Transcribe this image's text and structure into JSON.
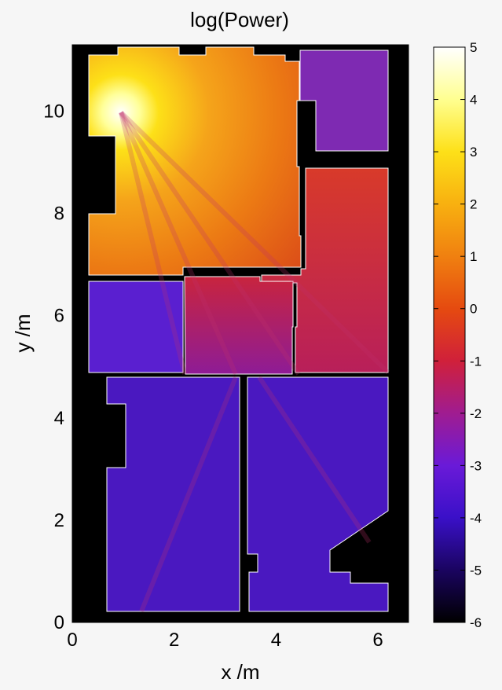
{
  "chart_data": {
    "type": "heatmap",
    "title": "log(Power)",
    "xlabel": "x /m",
    "ylabel": "y /m",
    "xlim": [
      0,
      6.6
    ],
    "ylim": [
      0,
      11.3
    ],
    "x_ticks": [
      "0",
      "2",
      "4",
      "6"
    ],
    "x_tick_values": [
      0,
      2,
      4,
      6
    ],
    "y_ticks": [
      "0",
      "2",
      "4",
      "6",
      "8",
      "10"
    ],
    "y_tick_values": [
      0,
      2,
      4,
      6,
      8,
      10
    ],
    "colorbar": {
      "range": [
        -6,
        5
      ],
      "ticks": [
        "5",
        "4",
        "3",
        "2",
        "1",
        "0",
        "-1",
        "-2",
        "-3",
        "-4",
        "-5",
        "-6"
      ],
      "tick_values": [
        5,
        4,
        3,
        2,
        1,
        0,
        -1,
        -2,
        -3,
        -4,
        -5,
        -6
      ],
      "colormap": [
        "#000000",
        "#1a0460",
        "#3a10c8",
        "#6a1ad8",
        "#a01c90",
        "#d0203a",
        "#e54a10",
        "#f08010",
        "#f8b010",
        "#fde018",
        "#ffff90",
        "#ffffff"
      ]
    },
    "source": {
      "x": 0.9,
      "y": 10.0,
      "peak": 5
    },
    "rooms": [
      {
        "name": "top-left-hall",
        "level": 0.5
      },
      {
        "name": "top-right-room",
        "level": -2.8
      },
      {
        "name": "middle-right-room",
        "level": -1.8
      },
      {
        "name": "left-room",
        "level": -3.6
      },
      {
        "name": "bottom-left-room",
        "level": -4.0
      },
      {
        "name": "bottom-right-room",
        "level": -4.0
      }
    ]
  }
}
